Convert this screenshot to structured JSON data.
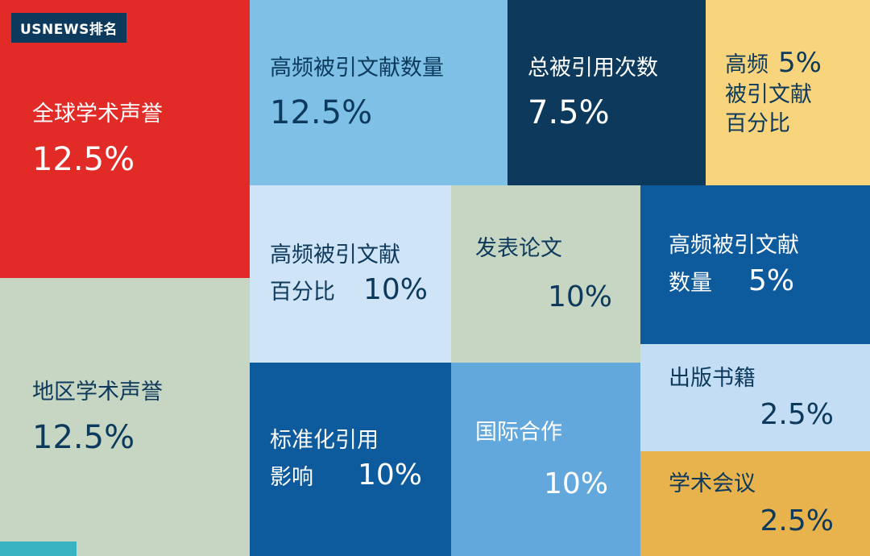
{
  "badge": {
    "text": "USNEWS排名"
  },
  "palette": {
    "red": "#e22a26",
    "navy": "#0d3a5c",
    "sky": "#7fc0e6",
    "pale": "#cfe4f6",
    "pale2": "#c3ddf5",
    "sage": "#c7d6c2",
    "deepblue": "#0d5a9c",
    "midblue": "#62a8dc",
    "yellow": "#f8d47c",
    "amber": "#e8b24c",
    "teal": "#38b4c0",
    "white": "#ffffff"
  },
  "blocks": [
    {
      "id": "global-academic-reputation",
      "label": "全球学术声誉",
      "value": "12.5%",
      "bg": "red",
      "fg": "white"
    },
    {
      "id": "regional-academic-reputation",
      "label": "地区学术声誉",
      "value": "12.5%",
      "bg": "sage",
      "fg": "navy"
    },
    {
      "id": "highly-cited-papers-count-12-5",
      "label": "高频被引文献数量",
      "value": "12.5%",
      "bg": "sky",
      "fg": "navy"
    },
    {
      "id": "total-citations",
      "label": "总被引用次数",
      "value": "7.5%",
      "bg": "navy",
      "fg": "white"
    },
    {
      "id": "highly-cited-papers-percent-5",
      "label_head": "高频",
      "label_lines": [
        "被引文献",
        "百分比"
      ],
      "value": "5%",
      "bg": "yellow",
      "fg": "navy"
    },
    {
      "id": "highly-cited-papers-percent-10",
      "label_lines": [
        "高频被引文献",
        "百分比"
      ],
      "value": "10%",
      "bg": "pale",
      "fg": "navy"
    },
    {
      "id": "publications",
      "label": "发表论文",
      "value": "10%",
      "bg": "sage",
      "fg": "navy"
    },
    {
      "id": "highly-cited-papers-count-5",
      "label_lines": [
        "高频被引文献",
        "数量"
      ],
      "value": "5%",
      "bg": "deepblue",
      "fg": "white"
    },
    {
      "id": "books",
      "label": "出版书籍",
      "value": "2.5%",
      "bg": "pale2",
      "fg": "navy"
    },
    {
      "id": "conferences",
      "label": "学术会议",
      "value": "2.5%",
      "bg": "amber",
      "fg": "navy"
    },
    {
      "id": "normalized-citation-impact",
      "label_lines": [
        "标准化引用",
        "影响"
      ],
      "value": "10%",
      "bg": "deepblue",
      "fg": "white"
    },
    {
      "id": "international-collaboration",
      "label": "国际合作",
      "value": "10%",
      "bg": "midblue",
      "fg": "white"
    }
  ],
  "chart_data": {
    "type": "treemap",
    "title": "USNEWS排名",
    "unit": "%",
    "items": [
      {
        "label": "全球学术声誉",
        "value": 12.5
      },
      {
        "label": "地区学术声誉",
        "value": 12.5
      },
      {
        "label": "高频被引文献数量",
        "value": 12.5
      },
      {
        "label": "总被引用次数",
        "value": 7.5
      },
      {
        "label": "高频被引文献百分比",
        "value": 5
      },
      {
        "label": "高频被引文献百分比",
        "value": 10
      },
      {
        "label": "发表论文",
        "value": 10
      },
      {
        "label": "高频被引文献数量",
        "value": 5
      },
      {
        "label": "出版书籍",
        "value": 2.5
      },
      {
        "label": "学术会议",
        "value": 2.5
      },
      {
        "label": "标准化引用影响",
        "value": 10
      },
      {
        "label": "国际合作",
        "value": 10
      }
    ]
  }
}
